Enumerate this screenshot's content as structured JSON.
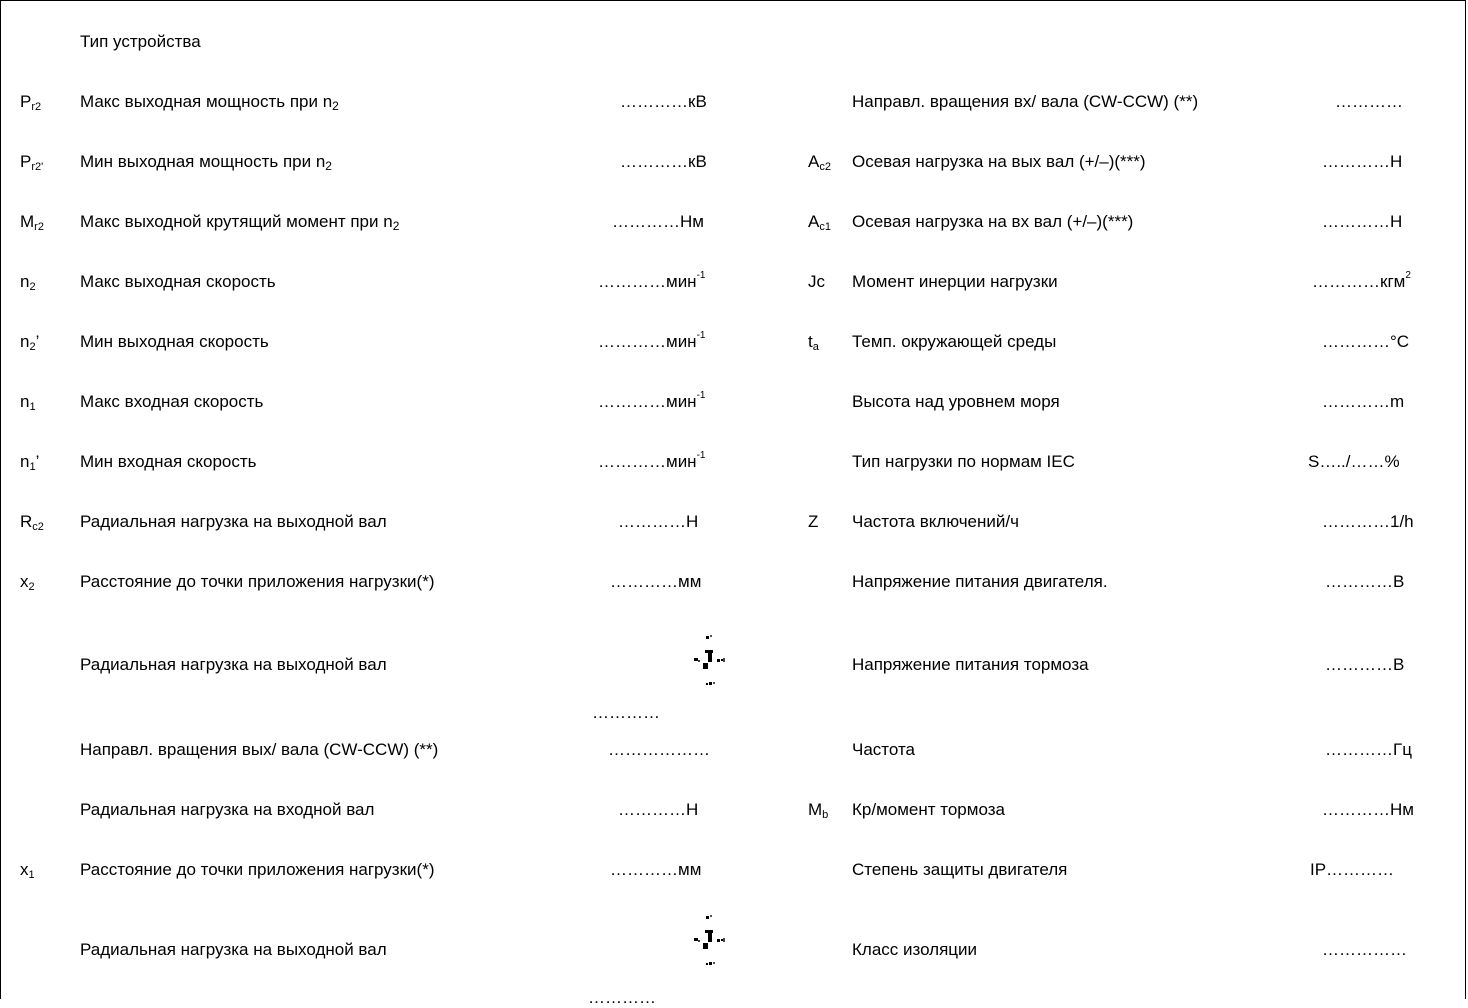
{
  "title": "Тип устройства",
  "left_rows": [
    {
      "sym": "P",
      "sym_sub": "r2",
      "sym_sup": "",
      "label": "Макс выходная мощность при n",
      "label_sub": "2",
      "value": "…………кВ",
      "value_sup": ""
    },
    {
      "sym": "P",
      "sym_sub": "r2'",
      "sym_sup": "",
      "label": "Мин выходная мощность при n",
      "label_sub": "2",
      "value": "…………кВ",
      "value_sup": ""
    },
    {
      "sym": "M",
      "sym_sub": "r2",
      "sym_sup": "",
      "label": "Макс выходной крутящий момент при n",
      "label_sub": "2",
      "value": "…………Нм",
      "value_sup": ""
    },
    {
      "sym": "n",
      "sym_sub": "2",
      "sym_sup": "",
      "label": "Макс выходная скорость",
      "label_sub": "",
      "value": "…………мин",
      "value_sup": "-1"
    },
    {
      "sym": "n",
      "sym_sub": "2",
      "sym_sup": "’",
      "label": "Мин выходная скорость",
      "label_sub": "",
      "value": "…………мин",
      "value_sup": "-1"
    },
    {
      "sym": "n",
      "sym_sub": "1",
      "sym_sup": "",
      "label": "Макс входная скорость",
      "label_sub": "",
      "value": "…………мин",
      "value_sup": "-1"
    },
    {
      "sym": "n",
      "sym_sub": "1",
      "sym_sup": "’",
      "label": "Мин входная скорость",
      "label_sub": "",
      "value": "…………мин",
      "value_sup": "-1"
    },
    {
      "sym": "R",
      "sym_sub": "c2",
      "sym_sup": "",
      "label": "Радиальная нагрузка на выходной вал",
      "label_sub": "",
      "value": "…………Н",
      "value_sup": ""
    },
    {
      "sym": "x",
      "sym_sub": "2",
      "sym_sup": "",
      "label": "Расстояние до точки приложения нагрузки(*)",
      "label_sub": "",
      "value": "…………мм",
      "value_sup": ""
    },
    {
      "sym": "",
      "sym_sub": "",
      "sym_sup": "",
      "label": "Радиальная нагрузка на выходной вал",
      "label_sub": "",
      "value": "…………",
      "value_sup": ""
    },
    {
      "sym": "",
      "sym_sub": "",
      "sym_sup": "",
      "label": "Направл. вращения вых/ вала (CW-CCW) (**)",
      "label_sub": "",
      "value": "………………",
      "value_sup": ""
    },
    {
      "sym": "",
      "sym_sub": "",
      "sym_sup": "",
      "label": "Радиальная нагрузка на входной вал",
      "label_sub": "",
      "value": "…………Н",
      "value_sup": ""
    },
    {
      "sym": "x",
      "sym_sub": "1",
      "sym_sup": "",
      "label": "Расстояние до точки приложения нагрузки(*)",
      "label_sub": "",
      "value": "…………мм",
      "value_sup": ""
    },
    {
      "sym": "",
      "sym_sub": "",
      "sym_sup": "",
      "label": "Радиальная нагрузка на выходной вал",
      "label_sub": "",
      "value": "…………",
      "value_sup": ""
    }
  ],
  "right_rows": [
    {
      "sym": "",
      "sym_sub": "",
      "label": "Направл. вращения вх/ вала (CW-CCW) (**)",
      "value": "…………",
      "value_sup": ""
    },
    {
      "sym": "A",
      "sym_sub": "c2",
      "label": "Осевая нагрузка на вых вал (+/–)(***)",
      "value": "…………Н",
      "value_sup": ""
    },
    {
      "sym": "A",
      "sym_sub": "c1",
      "label": "Осевая нагрузка на вх вал (+/–)(***)",
      "value": "…………Н",
      "value_sup": ""
    },
    {
      "sym": "Jc",
      "sym_sub": "",
      "label": "Момент инерции нагрузки",
      "value": "…………кгм",
      "value_sup": "2"
    },
    {
      "sym": "t",
      "sym_sub": "a",
      "label": "Темп. окружающей среды",
      "value": "…………°C",
      "value_sup": ""
    },
    {
      "sym": "",
      "sym_sub": "",
      "label": "Высота над уровнем моря",
      "value": "…………m",
      "value_sup": ""
    },
    {
      "sym": "",
      "sym_sub": "",
      "label": "Тип нагрузки по нормам IEC",
      "value": "S…../……%",
      "value_sup": ""
    },
    {
      "sym": "Z",
      "sym_sub": "",
      "label": "Частота включений/ч",
      "value": "…………1/h",
      "value_sup": ""
    },
    {
      "sym": "",
      "sym_sub": "",
      "label": "Напряжение питания двигателя.",
      "value": "…………В",
      "value_sup": ""
    },
    {
      "sym": "",
      "sym_sub": "",
      "label": "Напряжение питания тормоза",
      "value": "…………В",
      "value_sup": ""
    },
    {
      "sym": "",
      "sym_sub": "",
      "label": "Частота",
      "value": "…………Гц",
      "value_sup": ""
    },
    {
      "sym": "M",
      "sym_sub": "b",
      "label": "Кр/момент тормоза",
      "value": "…………Нм",
      "value_sup": ""
    },
    {
      "sym": "",
      "sym_sub": "",
      "label": "Степень защиты двигателя",
      "value": "IP…………",
      "value_sup": ""
    },
    {
      "sym": "",
      "sym_sub": "",
      "label": "Класс изоляции",
      "value": "……………",
      "value_sup": ""
    }
  ]
}
